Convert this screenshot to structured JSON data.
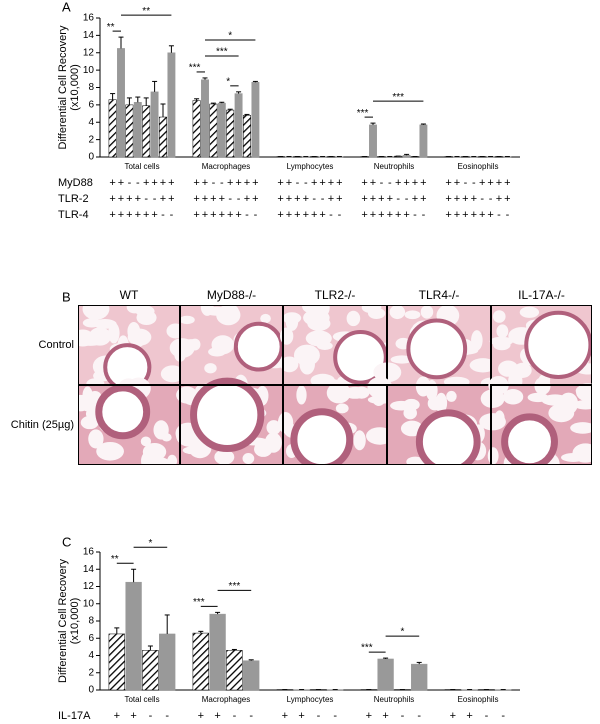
{
  "chart_data": [
    {
      "type": "bar",
      "panel": "A",
      "ylabel": [
        "Differential Cell Recovery",
        "(x10,000)"
      ],
      "categories": [
        "Total cells",
        "Macrophages",
        "Lymphocytes",
        "Neutrophils",
        "Eosinophils"
      ],
      "values": [
        [
          6.6,
          12.5,
          6.0,
          6.3,
          5.9,
          7.5,
          4.6,
          12.0
        ],
        [
          6.5,
          8.9,
          6.1,
          6.2,
          5.4,
          7.3,
          4.8,
          8.6
        ],
        [
          0.05,
          0.05,
          0.05,
          0.05,
          0.05,
          0.05,
          0.05,
          0.05
        ],
        [
          0.05,
          3.7,
          0.05,
          0.05,
          0.1,
          0.2,
          0.05,
          3.7
        ],
        [
          0.05,
          0.05,
          0.05,
          0.05,
          0.05,
          0.05,
          0.05,
          0.05
        ]
      ],
      "errors": [
        [
          0.7,
          1.3,
          0.8,
          0.6,
          0.9,
          1.2,
          1.5,
          0.8
        ],
        [
          0.2,
          0.2,
          0.1,
          0.1,
          0.1,
          0.2,
          0.1,
          0.1
        ],
        [
          0,
          0,
          0,
          0,
          0,
          0,
          0,
          0
        ],
        [
          0,
          0.2,
          0,
          0,
          0,
          0.1,
          0,
          0.1
        ],
        [
          0,
          0,
          0,
          0,
          0,
          0,
          0,
          0
        ]
      ],
      "hatched": [
        true,
        false,
        true,
        false,
        true,
        false,
        true,
        false
      ],
      "color": "#999999",
      "ylim": [
        0,
        16
      ],
      "yticks": [
        0,
        2,
        4,
        6,
        8,
        10,
        12,
        14,
        16
      ],
      "conditions": [
        {
          "label": "MyD88",
          "signs": [
            "+",
            "+",
            "-",
            "-",
            "+",
            "+",
            "+",
            "+"
          ]
        },
        {
          "label": "TLR-2",
          "signs": [
            "+",
            "+",
            "+",
            "+",
            "-",
            "-",
            "+",
            "+"
          ]
        },
        {
          "label": "TLR-4",
          "signs": [
            "+",
            "+",
            "+",
            "+",
            "+",
            "+",
            "-",
            "-"
          ]
        }
      ],
      "annotations": [
        {
          "group": 0,
          "from": 0,
          "to": 1,
          "text": "**"
        },
        {
          "group": 0,
          "from": 1,
          "to": 7,
          "text": "**"
        },
        {
          "group": 1,
          "from": 0,
          "to": 1,
          "text": "***"
        },
        {
          "group": 1,
          "from": 4,
          "to": 5,
          "text": "*"
        },
        {
          "group": 1,
          "from": 1,
          "to": 5,
          "text": "***"
        },
        {
          "group": 1,
          "from": 1,
          "to": 7,
          "text": "*"
        },
        {
          "group": 3,
          "from": 0,
          "to": 1,
          "text": "***"
        },
        {
          "group": 3,
          "from": 1,
          "to": 7,
          "text": "***"
        }
      ]
    },
    {
      "type": "bar",
      "panel": "C",
      "ylabel": [
        "Differential Cell Recovery",
        "(x10,000)"
      ],
      "categories": [
        "Total cells",
        "Macrophages",
        "Lymphocytes",
        "Neutrophils",
        "Eosinophils"
      ],
      "values": [
        [
          6.5,
          12.5,
          4.6,
          6.5
        ],
        [
          6.6,
          8.8,
          4.6,
          3.4
        ],
        [
          0.05,
          0.05,
          0.05,
          0.05
        ],
        [
          0.05,
          3.6,
          0.05,
          3.0
        ],
        [
          0.05,
          0.05,
          0.05,
          0.05
        ]
      ],
      "errors": [
        [
          0.7,
          1.5,
          0.5,
          2.2
        ],
        [
          0.2,
          0.2,
          0.1,
          0.1
        ],
        [
          0,
          0,
          0,
          0
        ],
        [
          0,
          0.1,
          0,
          0.2
        ],
        [
          0,
          0,
          0,
          0
        ]
      ],
      "hatched": [
        true,
        false,
        true,
        false
      ],
      "color": "#999999",
      "ylim": [
        0,
        16
      ],
      "yticks": [
        0,
        2,
        4,
        6,
        8,
        10,
        12,
        14,
        16
      ],
      "conditions": [
        {
          "label": "IL-17A",
          "signs": [
            "+",
            "+",
            "-",
            "-"
          ]
        }
      ],
      "annotations": [
        {
          "group": 0,
          "from": 0,
          "to": 1,
          "text": "**"
        },
        {
          "group": 0,
          "from": 1,
          "to": 3,
          "text": "*"
        },
        {
          "group": 1,
          "from": 0,
          "to": 1,
          "text": "***"
        },
        {
          "group": 1,
          "from": 1,
          "to": 3,
          "text": "***"
        },
        {
          "group": 3,
          "from": 0,
          "to": 1,
          "text": "***"
        },
        {
          "group": 3,
          "from": 1,
          "to": 3,
          "text": "*"
        }
      ]
    }
  ],
  "histology": {
    "panel": "B",
    "columns": [
      "WT",
      "MyD88-/-",
      "TLR2-/-",
      "TLR4-/-",
      "IL-17A-/-"
    ],
    "rows": [
      "Control",
      "Chitin (25µg)"
    ]
  }
}
